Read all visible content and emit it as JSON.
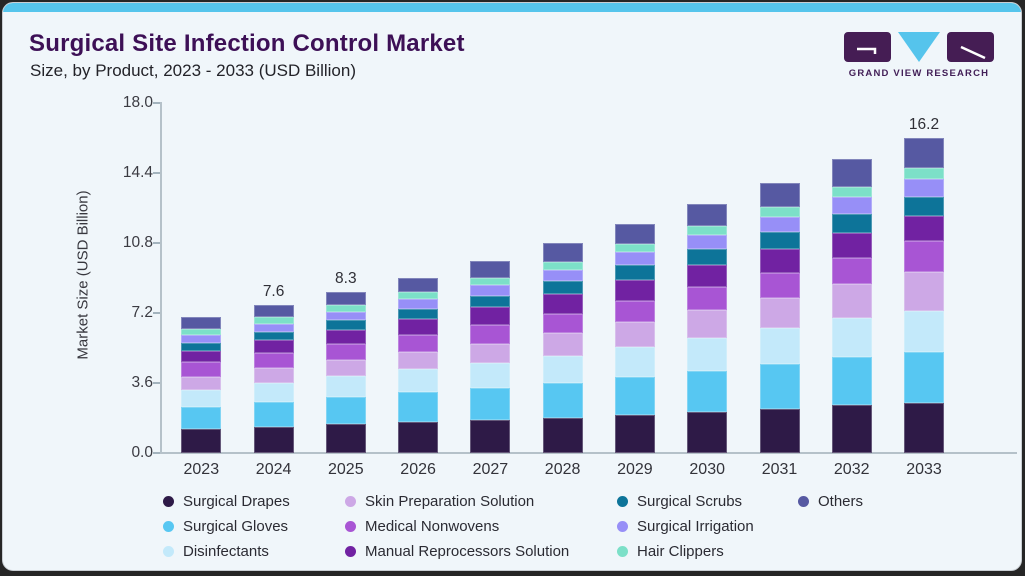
{
  "header": {
    "title": "Surgical Site Infection Control Market",
    "subtitle": "Size, by Product, 2023 - 2033 (USD Billion)",
    "brand": "GRAND VIEW RESEARCH"
  },
  "colors": {
    "accent_strip": "#56c5ec",
    "card_bg": "#f0f6fa",
    "title": "#3d1056",
    "logo_purple": "#451d54",
    "logo_cyan": "#55c4ec",
    "axis": "#b5c1c9"
  },
  "chart_data": {
    "type": "bar",
    "stacked": true,
    "title": "Surgical Site Infection Control Market Size, by Product, 2023 - 2033 (USD Billion)",
    "xlabel": "",
    "ylabel": "Market Size (USD Billion)",
    "ylim": [
      0,
      18
    ],
    "ytick_values": [
      18,
      14.4,
      10.8,
      7.2,
      3.6,
      0
    ],
    "ytick_labels": [
      "18.0",
      "14.4",
      "10.8",
      "7.2",
      "3.6",
      "0.0"
    ],
    "grid": false,
    "legend_position": "bottom",
    "categories": [
      "2023",
      "2024",
      "2025",
      "2026",
      "2027",
      "2028",
      "2029",
      "2030",
      "2031",
      "2032",
      "2033"
    ],
    "bar_labels": [
      "",
      "7.6",
      "8.3",
      "",
      "",
      "",
      "",
      "",
      "",
      "",
      "16.2"
    ],
    "totals": [
      7.0,
      7.6,
      8.3,
      9.0,
      9.9,
      10.8,
      11.8,
      12.8,
      13.9,
      15.1,
      16.2
    ],
    "series": [
      {
        "name": "Surgical Drapes",
        "color": "#2e1a47",
        "values": [
          1.26,
          1.35,
          1.5,
          1.62,
          1.7,
          1.8,
          1.95,
          2.1,
          2.27,
          2.45,
          2.55
        ]
      },
      {
        "name": "Surgical Gloves",
        "color": "#57c7f2",
        "values": [
          1.12,
          1.25,
          1.4,
          1.5,
          1.62,
          1.78,
          1.95,
          2.12,
          2.3,
          2.5,
          2.64
        ]
      },
      {
        "name": "Disinfectants",
        "color": "#c3e9fa",
        "values": [
          0.84,
          1.02,
          1.08,
          1.2,
          1.3,
          1.42,
          1.56,
          1.7,
          1.85,
          2.0,
          2.1
        ]
      },
      {
        "name": "Skin Preparation Solution",
        "color": "#cda8e6",
        "values": [
          0.67,
          0.73,
          0.8,
          0.88,
          1.0,
          1.15,
          1.28,
          1.42,
          1.57,
          1.72,
          2.04
        ]
      },
      {
        "name": "Medical Nonwovens",
        "color": "#a855d4",
        "values": [
          0.77,
          0.79,
          0.82,
          0.88,
          0.95,
          1.02,
          1.1,
          1.18,
          1.27,
          1.38,
          1.55
        ]
      },
      {
        "name": "Manual Reprocessors Solution",
        "color": "#7122a2",
        "values": [
          0.6,
          0.67,
          0.75,
          0.82,
          0.92,
          1.0,
          1.08,
          1.15,
          1.22,
          1.28,
          1.3
        ]
      },
      {
        "name": "Surgical Scrubs",
        "color": "#0d7499",
        "values": [
          0.4,
          0.43,
          0.47,
          0.52,
          0.6,
          0.66,
          0.73,
          0.8,
          0.87,
          0.96,
          1.01
        ]
      },
      {
        "name": "Surgical Irrigation",
        "color": "#978ff7",
        "values": [
          0.4,
          0.42,
          0.45,
          0.48,
          0.54,
          0.6,
          0.67,
          0.73,
          0.8,
          0.86,
          0.92
        ]
      },
      {
        "name": "Hair Clippers",
        "color": "#7ce0c8",
        "values": [
          0.33,
          0.33,
          0.34,
          0.36,
          0.38,
          0.41,
          0.44,
          0.47,
          0.5,
          0.53,
          0.55
        ]
      },
      {
        "name": "Others",
        "color": "#5659a2",
        "values": [
          0.6,
          0.62,
          0.69,
          0.74,
          0.89,
          0.96,
          1.04,
          1.13,
          1.25,
          1.42,
          1.54
        ]
      }
    ]
  },
  "legend": {
    "items": [
      {
        "label": "Surgical Drapes",
        "color": "#2e1a47",
        "row": 0,
        "col": 0
      },
      {
        "label": "Skin Preparation Solution",
        "color": "#cda8e6",
        "row": 0,
        "col": 1
      },
      {
        "label": "Surgical Scrubs",
        "color": "#0d7499",
        "row": 0,
        "col": 2
      },
      {
        "label": "Others",
        "color": "#5659a2",
        "row": 0,
        "col": 3
      },
      {
        "label": "Surgical Gloves",
        "color": "#57c7f2",
        "row": 1,
        "col": 0
      },
      {
        "label": "Medical Nonwovens",
        "color": "#a855d4",
        "row": 1,
        "col": 1
      },
      {
        "label": "Surgical Irrigation",
        "color": "#978ff7",
        "row": 1,
        "col": 2
      },
      {
        "label": "Disinfectants",
        "color": "#c3e9fa",
        "row": 2,
        "col": 0
      },
      {
        "label": "Manual Reprocessors Solution",
        "color": "#7122a2",
        "row": 2,
        "col": 1
      },
      {
        "label": "Hair Clippers",
        "color": "#7ce0c8",
        "row": 2,
        "col": 2
      }
    ]
  }
}
